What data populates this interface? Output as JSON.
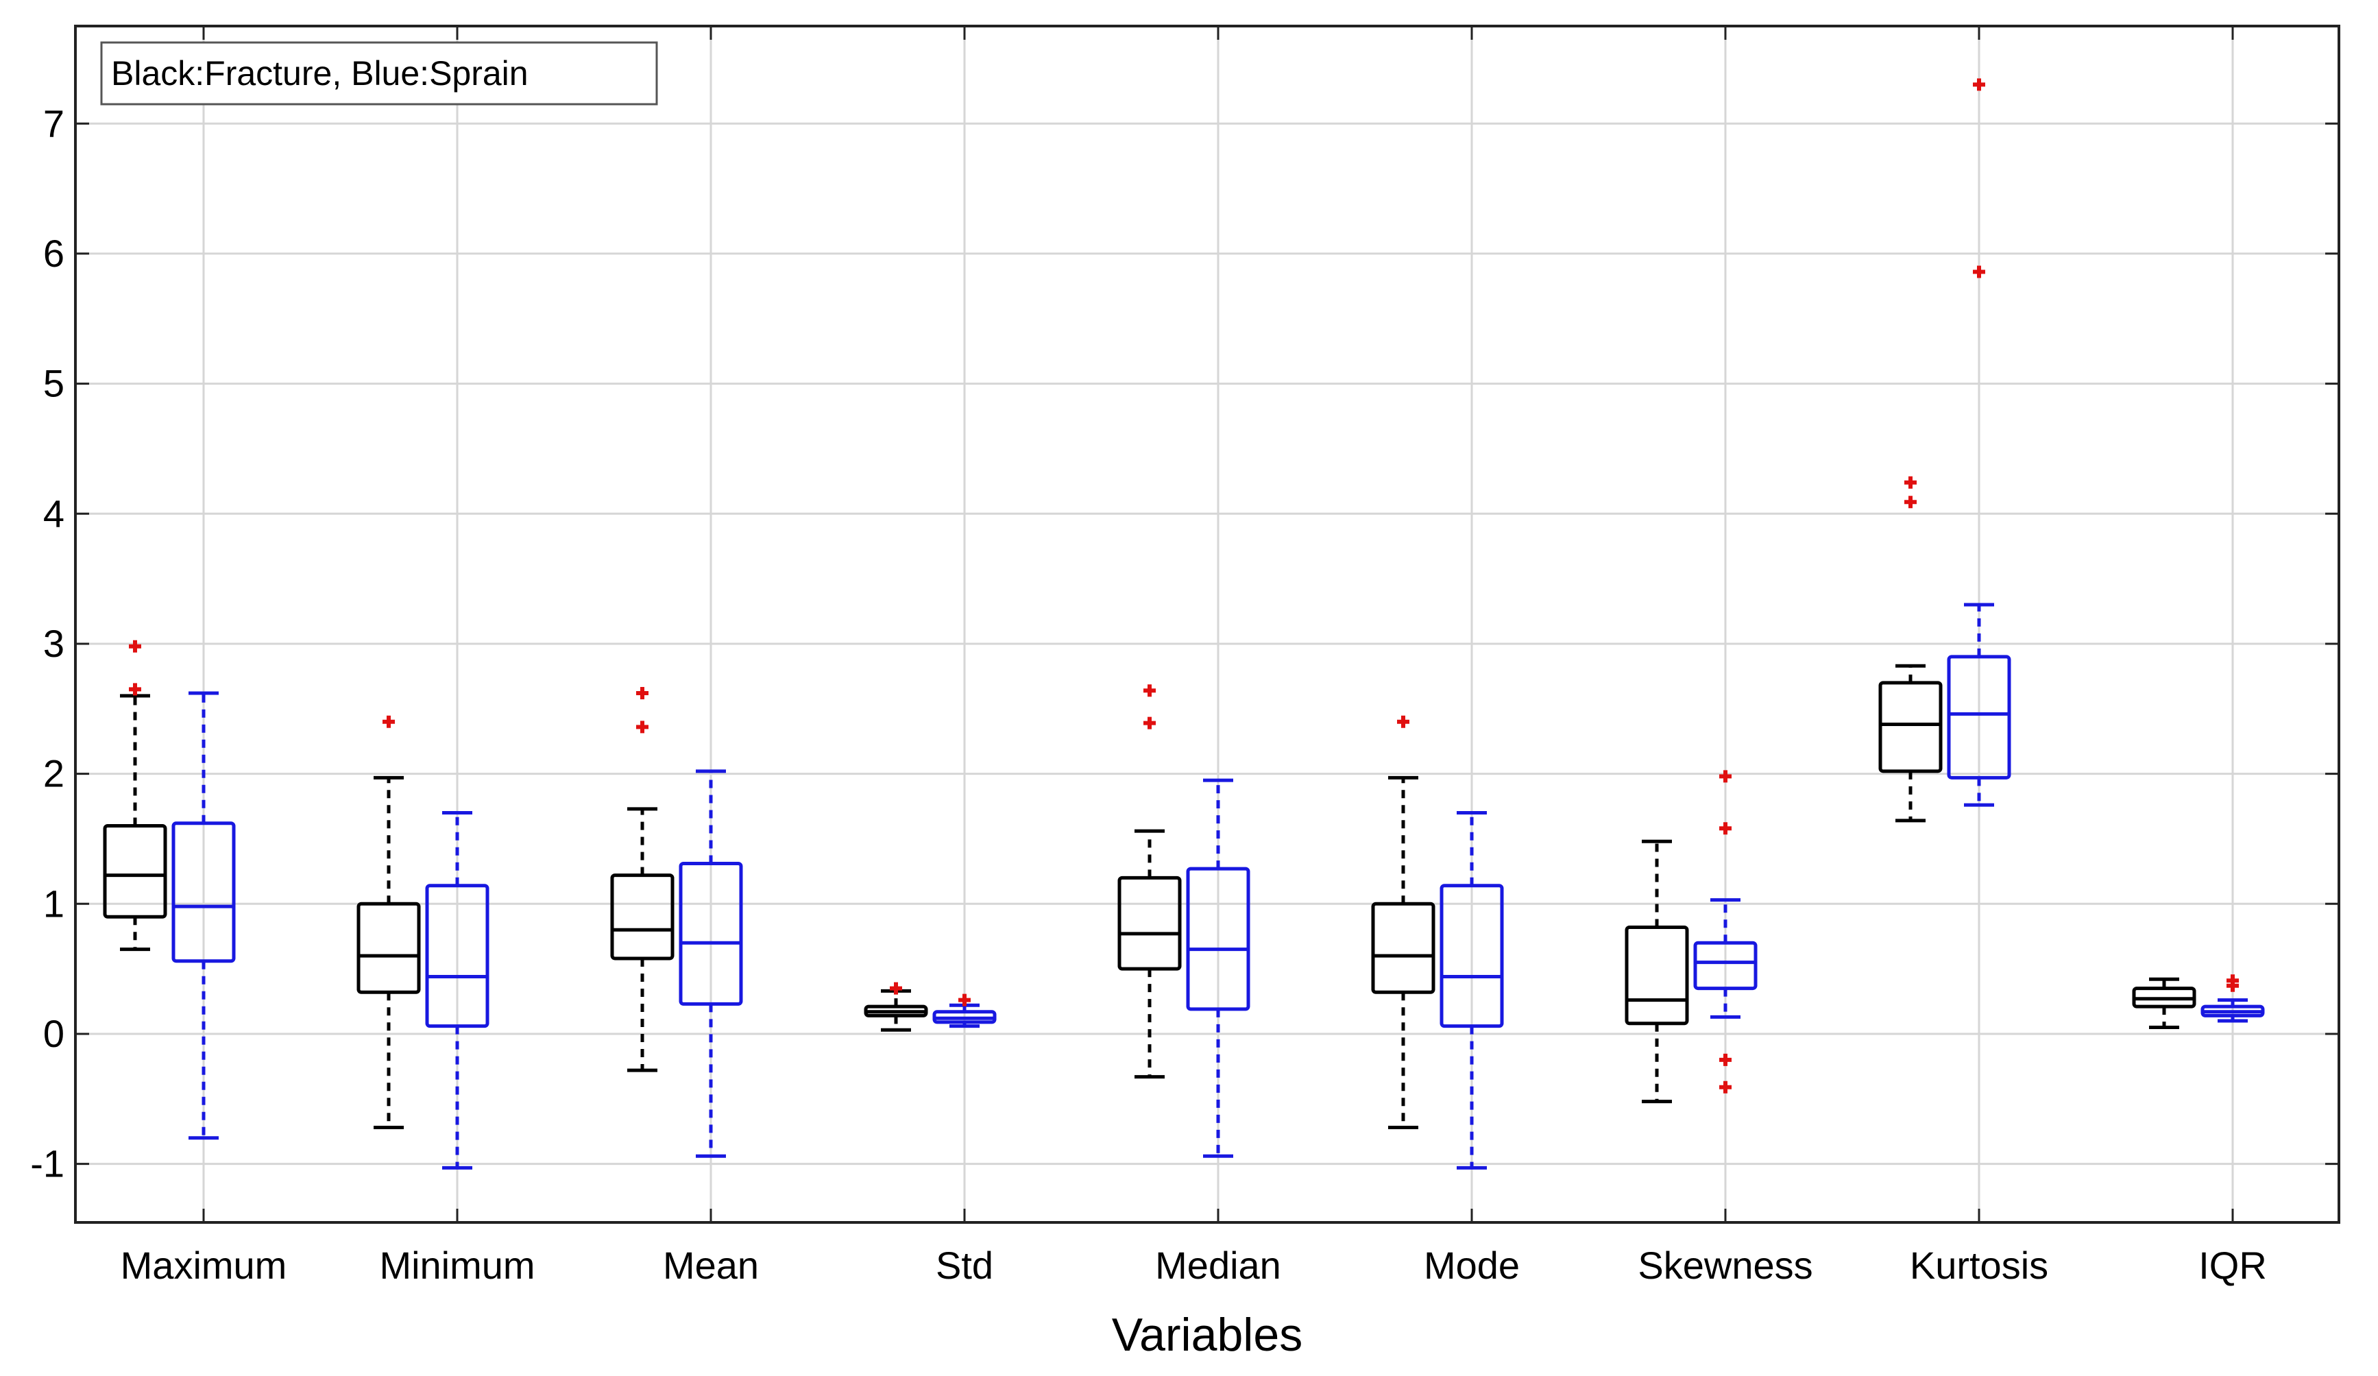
{
  "chart_data": {
    "type": "boxplot",
    "legend": "Black:Fracture, Blue:Sprain",
    "legend_position": "top-left",
    "xlabel": "Variables",
    "ylabel": "",
    "ylim": [
      -1.45,
      7.75
    ],
    "yticks": [
      -1,
      0,
      1,
      2,
      3,
      4,
      5,
      6,
      7
    ],
    "grid": true,
    "categories": [
      "Maximum",
      "Minimum",
      "Mean",
      "Std",
      "Median",
      "Mode",
      "Skewness",
      "Kurtosis",
      "IQR"
    ],
    "series": [
      {
        "name": "Fracture",
        "color": "#000000",
        "boxes": [
          {
            "low": 0.65,
            "q1": 0.9,
            "median": 1.22,
            "q3": 1.6,
            "high": 2.6,
            "outliers": [
              2.98,
              2.65
            ]
          },
          {
            "low": -0.72,
            "q1": 0.32,
            "median": 0.6,
            "q3": 1.0,
            "high": 1.97,
            "outliers": [
              2.4
            ]
          },
          {
            "low": -0.28,
            "q1": 0.58,
            "median": 0.8,
            "q3": 1.22,
            "high": 1.73,
            "outliers": [
              2.62,
              2.36
            ]
          },
          {
            "low": 0.03,
            "q1": 0.14,
            "median": 0.17,
            "q3": 0.21,
            "high": 0.33,
            "outliers": [
              0.35
            ]
          },
          {
            "low": -0.33,
            "q1": 0.5,
            "median": 0.77,
            "q3": 1.2,
            "high": 1.56,
            "outliers": [
              2.64,
              2.39
            ]
          },
          {
            "low": -0.72,
            "q1": 0.32,
            "median": 0.6,
            "q3": 1.0,
            "high": 1.97,
            "outliers": [
              2.4
            ]
          },
          {
            "low": -0.52,
            "q1": 0.08,
            "median": 0.26,
            "q3": 0.82,
            "high": 1.48,
            "outliers": []
          },
          {
            "low": 1.64,
            "q1": 2.02,
            "median": 2.38,
            "q3": 2.7,
            "high": 2.83,
            "outliers": [
              4.24,
              4.09
            ]
          },
          {
            "low": 0.05,
            "q1": 0.21,
            "median": 0.27,
            "q3": 0.35,
            "high": 0.42,
            "outliers": []
          }
        ]
      },
      {
        "name": "Sprain",
        "color": "#1818e0",
        "boxes": [
          {
            "low": -0.8,
            "q1": 0.56,
            "median": 0.98,
            "q3": 1.62,
            "high": 2.62,
            "outliers": []
          },
          {
            "low": -1.03,
            "q1": 0.06,
            "median": 0.44,
            "q3": 1.14,
            "high": 1.7,
            "outliers": []
          },
          {
            "low": -0.94,
            "q1": 0.23,
            "median": 0.7,
            "q3": 1.31,
            "high": 2.02,
            "outliers": []
          },
          {
            "low": 0.06,
            "q1": 0.09,
            "median": 0.12,
            "q3": 0.17,
            "high": 0.22,
            "outliers": [
              0.26
            ]
          },
          {
            "low": -0.94,
            "q1": 0.19,
            "median": 0.65,
            "q3": 1.27,
            "high": 1.95,
            "outliers": []
          },
          {
            "low": -1.03,
            "q1": 0.06,
            "median": 0.44,
            "q3": 1.14,
            "high": 1.7,
            "outliers": []
          },
          {
            "low": 0.13,
            "q1": 0.35,
            "median": 0.55,
            "q3": 0.7,
            "high": 1.03,
            "outliers": [
              1.98,
              1.58,
              -0.2,
              -0.41
            ]
          },
          {
            "low": 1.76,
            "q1": 1.97,
            "median": 2.46,
            "q3": 2.9,
            "high": 3.3,
            "outliers": [
              7.3,
              5.86
            ]
          },
          {
            "low": 0.1,
            "q1": 0.14,
            "median": 0.17,
            "q3": 0.21,
            "high": 0.26,
            "outliers": [
              0.41,
              0.37
            ]
          }
        ]
      }
    ]
  }
}
